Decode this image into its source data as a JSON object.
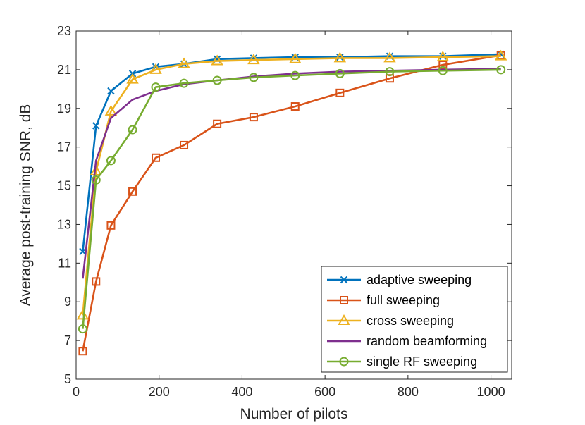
{
  "chart_data": {
    "type": "line",
    "title": "",
    "xlabel": "Number of pilots",
    "ylabel": "Average post-training SNR, dB",
    "xlim": [
      0,
      1050
    ],
    "ylim": [
      5,
      23
    ],
    "xticks": [
      0,
      200,
      400,
      600,
      800,
      1000
    ],
    "yticks": [
      5,
      7,
      9,
      11,
      13,
      15,
      17,
      19,
      21,
      23
    ],
    "grid": false,
    "legend_position": "bottom-right",
    "series": [
      {
        "name": "adaptive sweeping",
        "color": "#0072BD",
        "marker": "x",
        "x": [
          16,
          48,
          84,
          136,
          192,
          260,
          340,
          428,
          528,
          636,
          756,
          884,
          1024
        ],
        "y": [
          11.6,
          18.1,
          19.9,
          20.8,
          21.15,
          21.3,
          21.55,
          21.6,
          21.65,
          21.65,
          21.7,
          21.7,
          21.8
        ]
      },
      {
        "name": "full sweeping",
        "color": "#D95319",
        "marker": "square",
        "x": [
          16,
          48,
          84,
          136,
          192,
          260,
          340,
          428,
          528,
          636,
          756,
          884,
          1024
        ],
        "y": [
          6.45,
          10.05,
          12.95,
          14.7,
          16.45,
          17.1,
          18.2,
          18.55,
          19.1,
          19.8,
          20.55,
          21.25,
          21.75
        ]
      },
      {
        "name": "cross sweeping",
        "color": "#EDB120",
        "marker": "triangle",
        "x": [
          16,
          48,
          84,
          136,
          192,
          260,
          340,
          428,
          528,
          636,
          756,
          884,
          1024
        ],
        "y": [
          8.3,
          15.75,
          18.85,
          20.5,
          21.0,
          21.3,
          21.45,
          21.5,
          21.55,
          21.6,
          21.6,
          21.65,
          21.7
        ]
      },
      {
        "name": "random beamforming",
        "color": "#7E2F8E",
        "marker": "none",
        "x": [
          16,
          48,
          84,
          136,
          192,
          260,
          340,
          428,
          528,
          636,
          756,
          884,
          1024
        ],
        "y": [
          10.2,
          16.3,
          18.5,
          19.45,
          19.9,
          20.25,
          20.45,
          20.65,
          20.8,
          20.9,
          20.95,
          21.0,
          21.05
        ]
      },
      {
        "name": "single RF sweeping",
        "color": "#77AC30",
        "marker": "circle",
        "x": [
          16,
          48,
          84,
          136,
          192,
          260,
          340,
          428,
          528,
          636,
          756,
          884,
          1024
        ],
        "y": [
          7.6,
          15.3,
          16.3,
          17.9,
          20.1,
          20.3,
          20.45,
          20.6,
          20.7,
          20.8,
          20.9,
          20.95,
          21.0
        ]
      }
    ]
  }
}
